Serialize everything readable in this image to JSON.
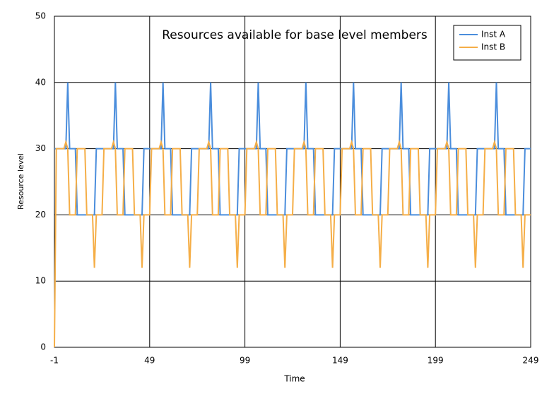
{
  "chart_data": {
    "type": "line",
    "title": "Resources available for base level members",
    "xlabel": "Time",
    "ylabel": "Resource level",
    "xlim": [
      -1,
      249
    ],
    "xticks": [
      -1,
      49,
      99,
      149,
      199,
      249
    ],
    "ylim": [
      0,
      50
    ],
    "yticks": [
      0,
      10,
      20,
      30,
      40,
      50
    ],
    "grid": true,
    "legend": "upper right",
    "x": [
      -1,
      0,
      1,
      2,
      3,
      4,
      5,
      6,
      7,
      8,
      9,
      10,
      11,
      12,
      13,
      14,
      15,
      16,
      17,
      18,
      19,
      20,
      21,
      22,
      23,
      24,
      25,
      26,
      27,
      28,
      29,
      30,
      31,
      32,
      33,
      34,
      35,
      36,
      37,
      38,
      39,
      40,
      41,
      42,
      43,
      44,
      45,
      46,
      47,
      48,
      49,
      50,
      51,
      52,
      53,
      54,
      55,
      56,
      57,
      58,
      59,
      60,
      61,
      62,
      63,
      64,
      65,
      66,
      67,
      68,
      69,
      70,
      71,
      72,
      73,
      74,
      75,
      76,
      77,
      78,
      79,
      80,
      81,
      82,
      83,
      84,
      85,
      86,
      87,
      88,
      89,
      90,
      91,
      92,
      93,
      94,
      95,
      96,
      97,
      98,
      99,
      100,
      101,
      102,
      103,
      104,
      105,
      106,
      107,
      108,
      109,
      110,
      111,
      112,
      113,
      114,
      115,
      116,
      117,
      118,
      119,
      120,
      121,
      122,
      123,
      124,
      125,
      126,
      127,
      128,
      129,
      130,
      131,
      132,
      133,
      134,
      135,
      136,
      137,
      138,
      139,
      140,
      141,
      142,
      143,
      144,
      145,
      146,
      147,
      148,
      149,
      150,
      151,
      152,
      153,
      154,
      155,
      156,
      157,
      158,
      159,
      160,
      161,
      162,
      163,
      164,
      165,
      166,
      167,
      168,
      169,
      170,
      171,
      172,
      173,
      174,
      175,
      176,
      177,
      178,
      179,
      180,
      181,
      182,
      183,
      184,
      185,
      186,
      187,
      188,
      189,
      190,
      191,
      192,
      193,
      194,
      195,
      196,
      197,
      198,
      199,
      200,
      201,
      202,
      203,
      204,
      205,
      206,
      207,
      208,
      209,
      210,
      211,
      212,
      213,
      214,
      215,
      216,
      217,
      218,
      219,
      220,
      221,
      222,
      223,
      224,
      225,
      226,
      227,
      228,
      229,
      230,
      231,
      232,
      233,
      234,
      235,
      236,
      237,
      238,
      239,
      240,
      241,
      242,
      243,
      244,
      245,
      246,
      247,
      248,
      249
    ],
    "series": [
      {
        "name": "Inst A",
        "color": "#4a8ddc",
        "values": [
          30,
          30,
          30,
          30,
          30,
          30,
          30,
          40,
          30,
          30,
          30,
          30,
          20,
          20,
          20,
          20,
          20,
          20,
          20,
          20,
          20,
          20,
          30,
          30,
          30,
          30,
          30,
          30,
          30,
          30,
          30,
          30,
          40,
          30,
          30,
          30,
          30,
          20,
          20,
          20,
          20,
          20,
          20,
          20,
          20,
          20,
          20,
          30,
          30,
          30,
          30,
          30,
          30,
          30,
          30,
          30,
          30,
          40,
          30,
          30,
          30,
          30,
          20,
          20,
          20,
          20,
          20,
          20,
          20,
          20,
          20,
          20,
          30,
          30,
          30,
          30,
          30,
          30,
          30,
          30,
          30,
          30,
          40,
          30,
          30,
          30,
          30,
          20,
          20,
          20,
          20,
          20,
          20,
          20,
          20,
          20,
          20,
          30,
          30,
          30,
          30,
          30,
          30,
          30,
          30,
          30,
          30,
          40,
          30,
          30,
          30,
          30,
          20,
          20,
          20,
          20,
          20,
          20,
          20,
          20,
          20,
          20,
          30,
          30,
          30,
          30,
          30,
          30,
          30,
          30,
          30,
          30,
          40,
          30,
          30,
          30,
          30,
          20,
          20,
          20,
          20,
          20,
          20,
          20,
          20,
          20,
          20,
          30,
          30,
          30,
          30,
          30,
          30,
          30,
          30,
          30,
          30,
          40,
          30,
          30,
          30,
          30,
          20,
          20,
          20,
          20,
          20,
          20,
          20,
          20,
          20,
          20,
          30,
          30,
          30,
          30,
          30,
          30,
          30,
          30,
          30,
          30,
          40,
          30,
          30,
          30,
          30,
          20,
          20,
          20,
          20,
          20,
          20,
          20,
          20,
          20,
          20,
          30,
          30,
          30,
          30,
          30,
          30,
          30,
          30,
          30,
          30,
          40,
          30,
          30,
          30,
          30,
          20,
          20,
          20,
          20,
          20,
          20,
          20,
          20,
          20,
          20,
          30,
          30,
          30,
          30,
          30,
          30,
          30,
          30,
          30,
          30,
          40,
          30,
          30,
          30,
          30,
          20,
          20,
          20,
          20,
          20,
          20,
          20,
          20,
          20,
          20,
          30,
          30,
          30,
          30
        ]
      },
      {
        "name": "Inst B",
        "color": "#f5ae47",
        "values": [
          0,
          30,
          30,
          30,
          30,
          30,
          31,
          30,
          20,
          20,
          20,
          20,
          30,
          30,
          30,
          30,
          30,
          20,
          20,
          20,
          20,
          12,
          20,
          20,
          20,
          20,
          30,
          30,
          30,
          30,
          30,
          31,
          30,
          20,
          20,
          20,
          20,
          30,
          30,
          30,
          30,
          30,
          20,
          20,
          20,
          20,
          12,
          20,
          20,
          20,
          20,
          30,
          30,
          30,
          30,
          30,
          31,
          30,
          20,
          20,
          20,
          20,
          30,
          30,
          30,
          30,
          30,
          20,
          20,
          20,
          20,
          12,
          20,
          20,
          20,
          20,
          30,
          30,
          30,
          30,
          30,
          31,
          30,
          20,
          20,
          20,
          20,
          30,
          30,
          30,
          30,
          30,
          20,
          20,
          20,
          20,
          12,
          20,
          20,
          20,
          20,
          30,
          30,
          30,
          30,
          30,
          31,
          30,
          20,
          20,
          20,
          20,
          30,
          30,
          30,
          30,
          30,
          20,
          20,
          20,
          20,
          12,
          20,
          20,
          20,
          20,
          30,
          30,
          30,
          30,
          30,
          31,
          30,
          20,
          20,
          20,
          20,
          30,
          30,
          30,
          30,
          30,
          20,
          20,
          20,
          20,
          12,
          20,
          20,
          20,
          20,
          30,
          30,
          30,
          30,
          30,
          31,
          30,
          20,
          20,
          20,
          20,
          30,
          30,
          30,
          30,
          30,
          20,
          20,
          20,
          20,
          12,
          20,
          20,
          20,
          20,
          30,
          30,
          30,
          30,
          30,
          31,
          30,
          20,
          20,
          20,
          20,
          30,
          30,
          30,
          30,
          30,
          20,
          20,
          20,
          20,
          12,
          20,
          20,
          20,
          20,
          30,
          30,
          30,
          30,
          30,
          31,
          30,
          20,
          20,
          20,
          20,
          30,
          30,
          30,
          30,
          30,
          20,
          20,
          20,
          20,
          12,
          20,
          20,
          20,
          20,
          30,
          30,
          30,
          30,
          30,
          31,
          30,
          20,
          20,
          20,
          20,
          30,
          30,
          30,
          30,
          30,
          20,
          20,
          20,
          20,
          12,
          20,
          20,
          20,
          20
        ]
      }
    ]
  }
}
